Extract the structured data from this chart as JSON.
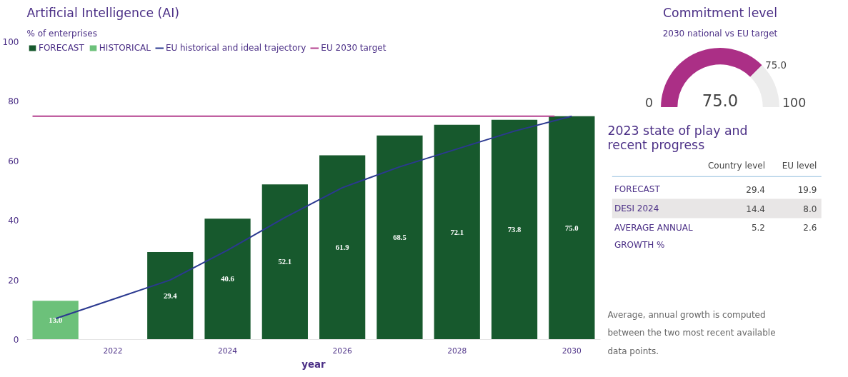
{
  "chart_data": [
    {
      "type": "bar",
      "title": "Artificial Intelligence (AI)",
      "subtitle": "% of enterprises",
      "xlabel": "year",
      "xlim": [
        2020.5,
        2030.5
      ],
      "xticks": [
        2022,
        2024,
        2026,
        2028,
        2030
      ],
      "ylim": [
        0,
        100
      ],
      "yticks": [
        0,
        20,
        40,
        60,
        80,
        100
      ],
      "grid": false,
      "legend": "top left",
      "series": [
        {
          "name": "FORECAST",
          "color": "#17592d",
          "x": [
            2023,
            2024,
            2025,
            2026,
            2027,
            2028,
            2029,
            2030
          ],
          "values": [
            29.4,
            40.6,
            52.1,
            61.9,
            68.5,
            72.1,
            73.8,
            75.0
          ],
          "value_labels": [
            "29.4",
            "40.6",
            "52.1",
            "61.9",
            "68.5",
            "72.1",
            "73.8",
            "75.0"
          ]
        },
        {
          "name": "HISTORICAL",
          "color": "#6cc17a",
          "x": [
            2021
          ],
          "values": [
            13.0
          ],
          "value_labels": [
            "13.0"
          ]
        },
        {
          "name": "EU historical and ideal trajectory",
          "type": "line",
          "color": "#2b3990",
          "x": [
            2021,
            2022,
            2023,
            2024,
            2025,
            2026,
            2027,
            2028,
            2029,
            2030
          ],
          "values": [
            7,
            13.5,
            20,
            30,
            41,
            51,
            58,
            64,
            70,
            75
          ]
        },
        {
          "name": "EU 2030 target",
          "type": "line",
          "color": "#b4418e",
          "x": [
            2020.6,
            2029.7
          ],
          "values": [
            75,
            75
          ]
        }
      ]
    },
    {
      "type": "donut",
      "title": "Commitment level",
      "subtitle": "2030 national vs EU target",
      "categories": [
        null,
        null
      ],
      "values": [
        75,
        25
      ],
      "colors": [
        "#ab2f86",
        "#ececec"
      ],
      "value_labels": [
        "75.0",
        null
      ],
      "annotations": [
        "75.0",
        "0",
        "100"
      ]
    },
    {
      "type": "other",
      "title": "2023 state of play and recent progress",
      "categories": [
        "FORECAST",
        "DESI 2024",
        "AVERAGE ANNUAL GROWTH %"
      ],
      "series": [
        {
          "name": "Country level",
          "values": [
            29.4,
            14.4,
            5.2
          ],
          "value_labels": [
            "29.4",
            "14.4",
            "5.2"
          ]
        },
        {
          "name": "EU level",
          "values": [
            19.9,
            8.0,
            2.6
          ],
          "value_labels": [
            "19.9",
            "8.0",
            "2.6"
          ]
        }
      ],
      "annotations": [
        "Average, annual growth is computed between the two most recent available data points."
      ]
    }
  ]
}
